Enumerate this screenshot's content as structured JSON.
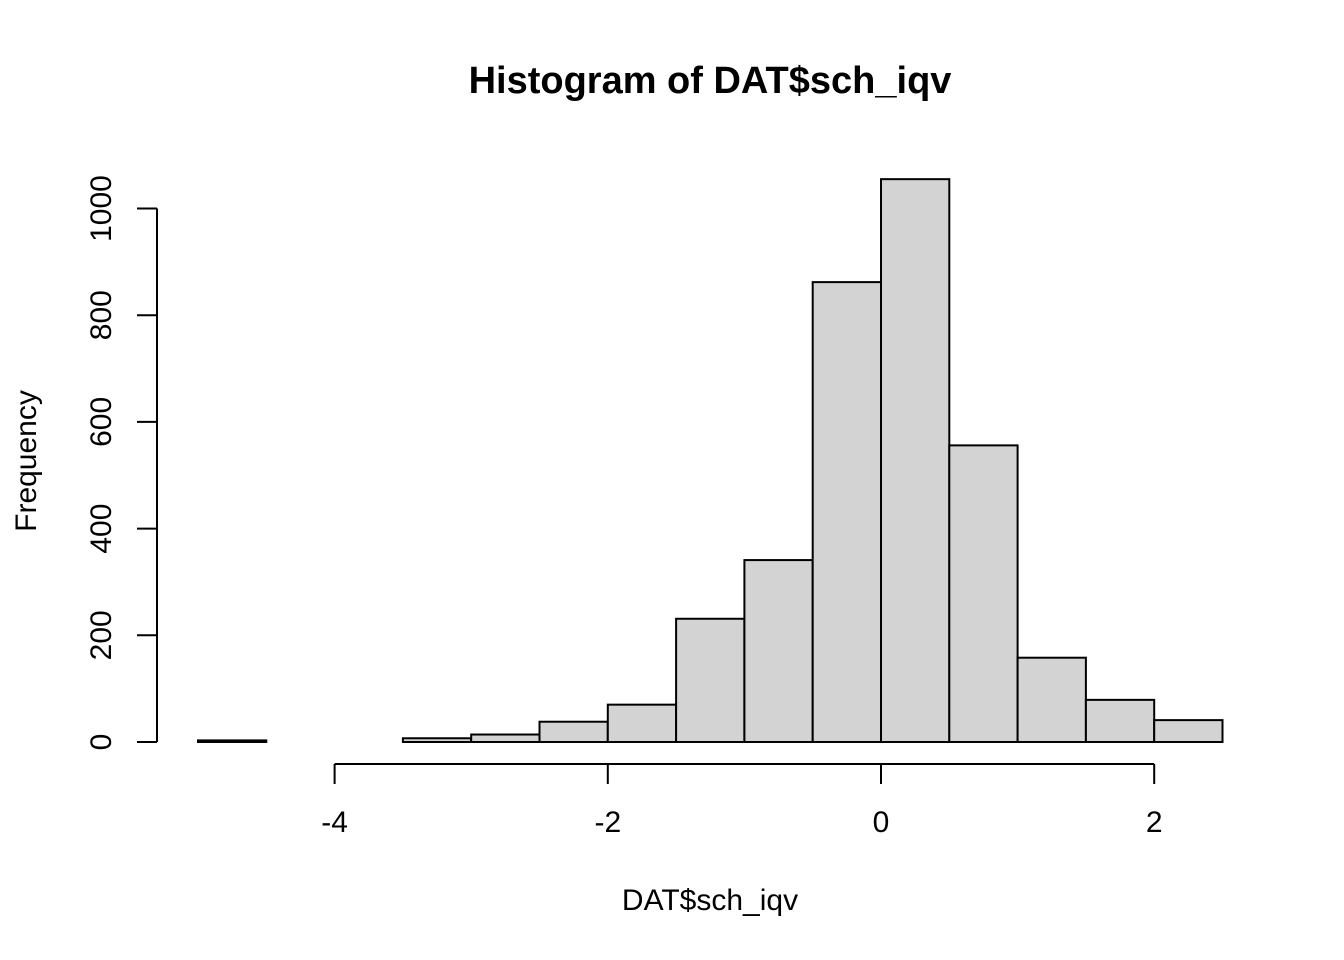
{
  "chart_data": {
    "type": "bar",
    "title": "Histogram of DAT$sch_iqv",
    "xlabel": "DAT$sch_iqv",
    "ylabel": "Frequency",
    "bar_color": "#d3d3d3",
    "border_color": "#000000",
    "xlim": [
      -5,
      2.5
    ],
    "ylim": [
      0,
      1050
    ],
    "x_ticks": [
      -4,
      -2,
      0,
      2
    ],
    "x_tick_labels": [
      "-4",
      "-2",
      "0",
      "2"
    ],
    "y_ticks": [
      0,
      200,
      400,
      600,
      800,
      1000
    ],
    "y_tick_labels": [
      "0",
      "200",
      "400",
      "600",
      "800",
      "1000"
    ],
    "grid": false,
    "bins": [
      {
        "from": -5.0,
        "to": -4.5,
        "count": 3
      },
      {
        "from": -4.5,
        "to": -4.0,
        "count": 0
      },
      {
        "from": -4.0,
        "to": -3.5,
        "count": 0
      },
      {
        "from": -3.5,
        "to": -3.0,
        "count": 7
      },
      {
        "from": -3.0,
        "to": -2.5,
        "count": 14
      },
      {
        "from": -2.5,
        "to": -2.0,
        "count": 38
      },
      {
        "from": -2.0,
        "to": -1.5,
        "count": 70
      },
      {
        "from": -1.5,
        "to": -1.0,
        "count": 231
      },
      {
        "from": -1.0,
        "to": -0.5,
        "count": 341
      },
      {
        "from": -0.5,
        "to": 0.0,
        "count": 862
      },
      {
        "from": 0.0,
        "to": 0.5,
        "count": 1055
      },
      {
        "from": 0.5,
        "to": 1.0,
        "count": 556
      },
      {
        "from": 1.0,
        "to": 1.5,
        "count": 158
      },
      {
        "from": 1.5,
        "to": 2.0,
        "count": 79
      },
      {
        "from": 2.0,
        "to": 2.5,
        "count": 41
      }
    ]
  }
}
